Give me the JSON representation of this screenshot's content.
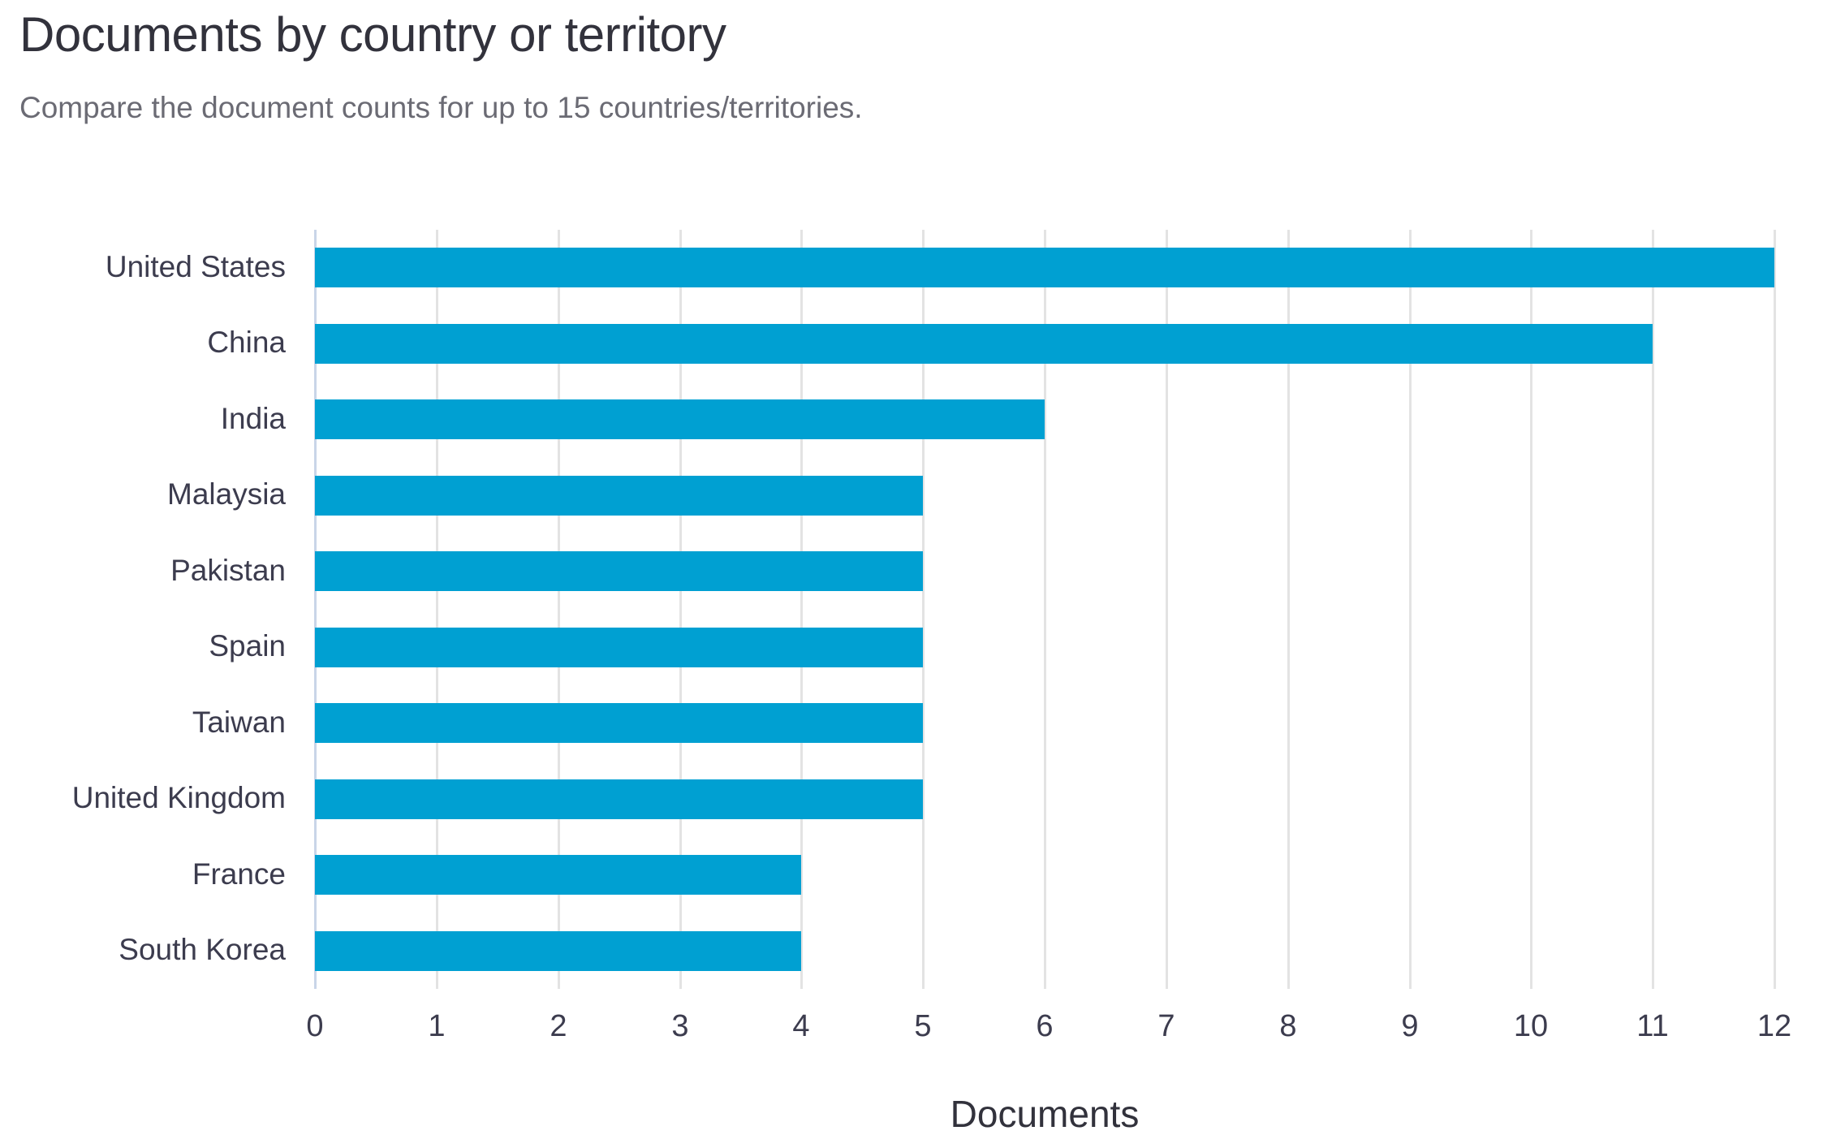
{
  "page": {
    "title": "Documents by country or territory",
    "subtitle": "Compare the document counts for up to 15 countries/territories."
  },
  "chart_data": {
    "type": "bar",
    "orientation": "horizontal",
    "title": "Documents by country or territory",
    "subtitle": "Compare the document counts for up to 15 countries/territories.",
    "categories": [
      "United States",
      "China",
      "India",
      "Malaysia",
      "Pakistan",
      "Spain",
      "Taiwan",
      "United Kingdom",
      "France",
      "South Korea"
    ],
    "values": [
      12,
      11,
      6,
      5,
      5,
      5,
      5,
      5,
      4,
      4
    ],
    "xlabel": "Documents",
    "ylabel": "",
    "xlim": [
      0,
      12
    ],
    "xticks": [
      0,
      1,
      2,
      3,
      4,
      5,
      6,
      7,
      8,
      9,
      10,
      11,
      12
    ],
    "grid": "vertical-gridlines-on",
    "legend": "none",
    "colors": {
      "bar": "#00a0d2",
      "gridline": "#e3e3e3",
      "zero_axis_line": "#c9d5e8",
      "title_text": "#32323c",
      "subtitle_text": "#6b6b74",
      "label_text": "#3c3c4e",
      "background": "#ffffff"
    }
  }
}
